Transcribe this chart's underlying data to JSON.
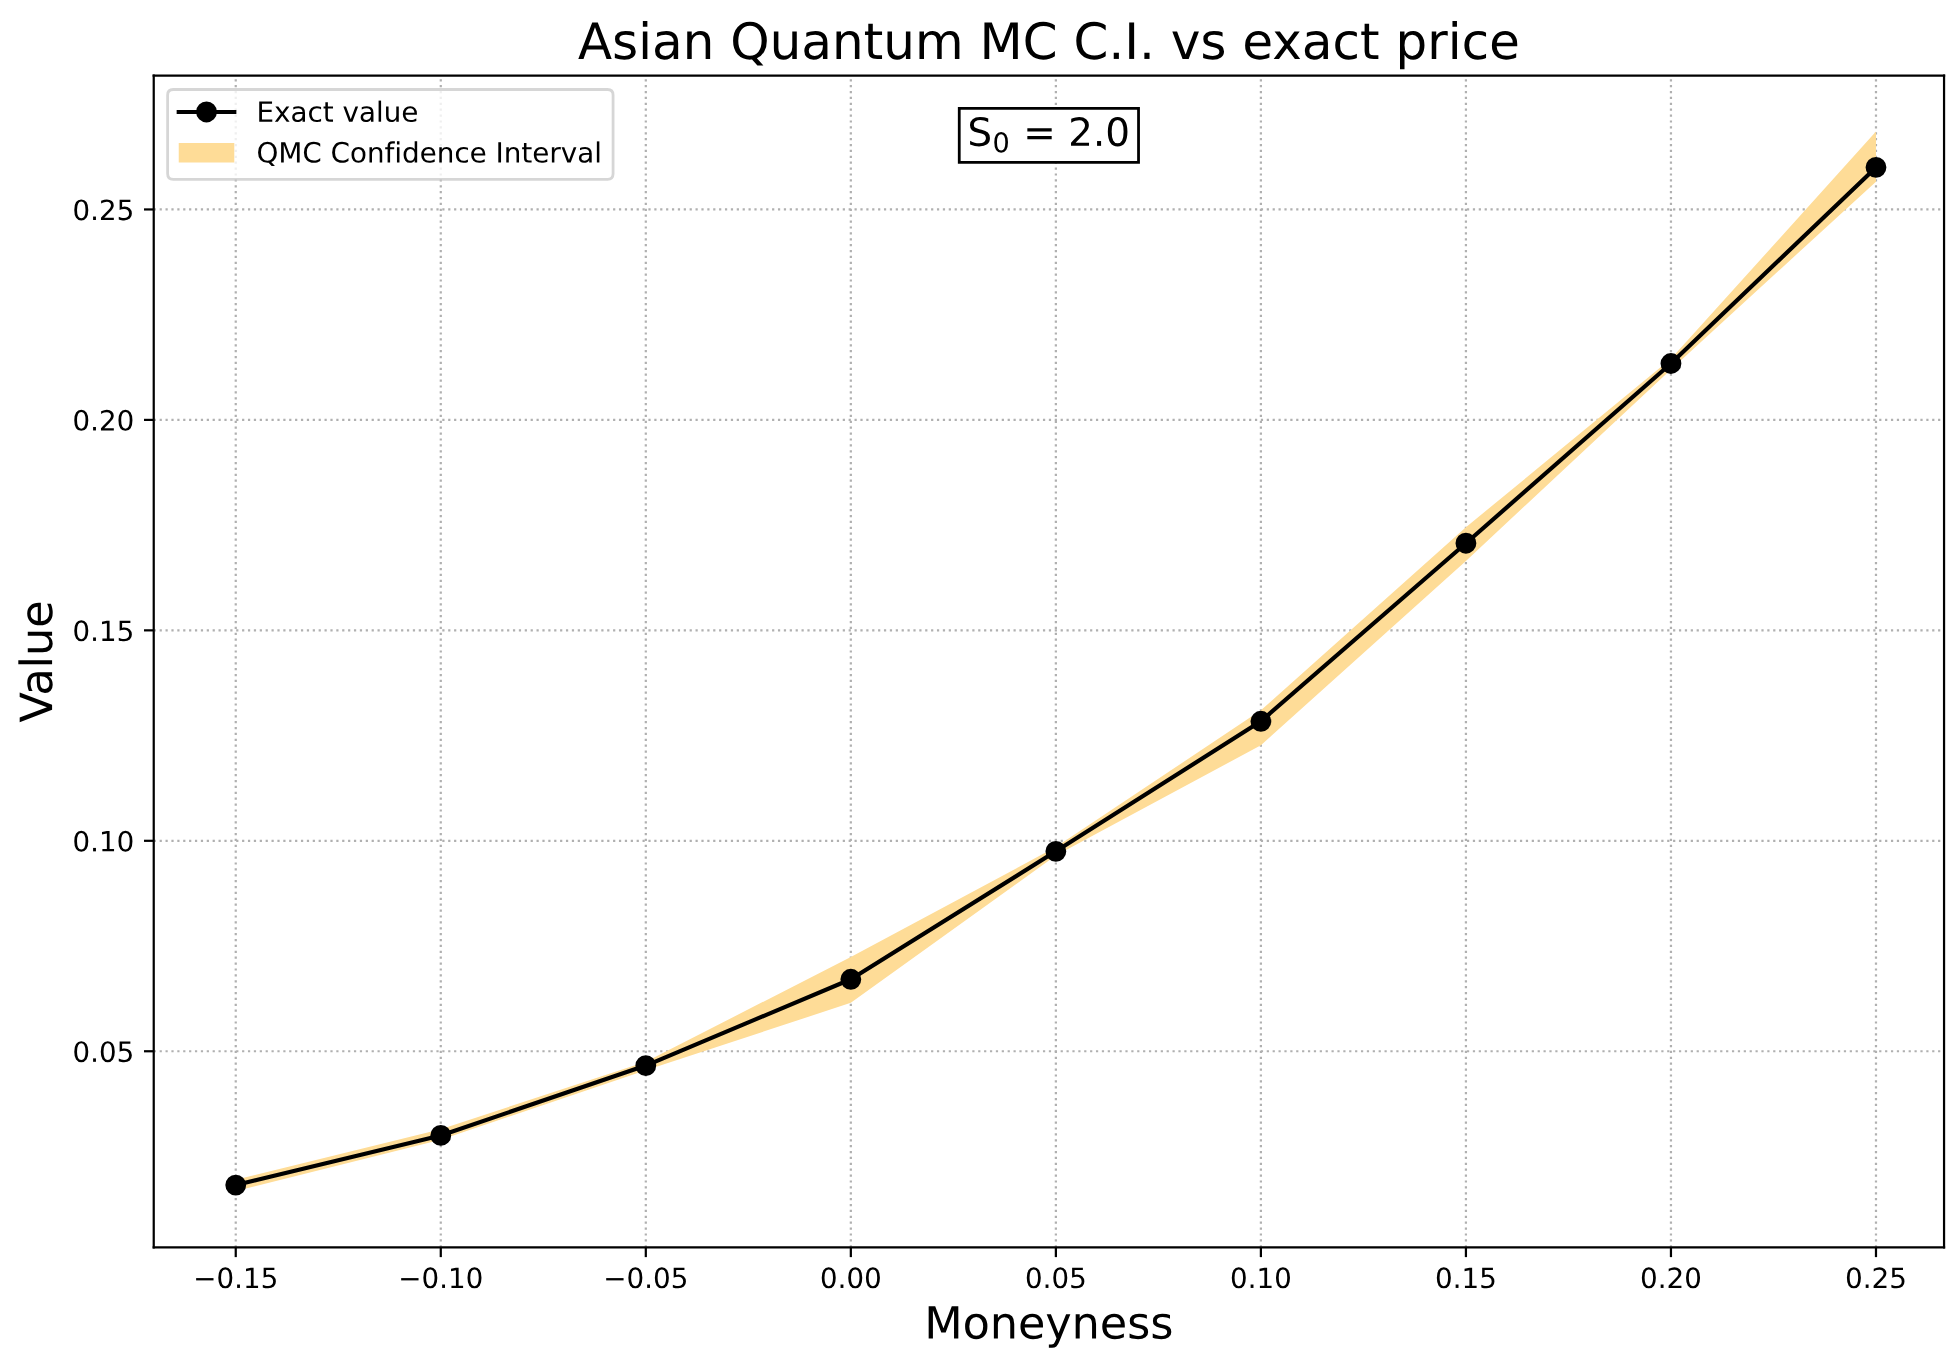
{
  "chart_data": {
    "type": "line",
    "title": "Asian Quantum MC C.I. vs exact price",
    "xlabel": "Moneyness",
    "ylabel": "Value",
    "x": [
      -0.15,
      -0.1,
      -0.05,
      0.0,
      0.05,
      0.1,
      0.15,
      0.2,
      0.25
    ],
    "series": [
      {
        "name": "Exact value",
        "color": "#000000",
        "marker": "circle",
        "values": [
          0.0182,
          0.03,
          0.0466,
          0.0671,
          0.0975,
          0.1284,
          0.1707,
          0.2134,
          0.26
        ]
      },
      {
        "name": "QMC Confidence Interval",
        "type": "area",
        "color": "#fedc97",
        "values": [
          null,
          null,
          null,
          null,
          null,
          null,
          null,
          null,
          null
        ],
        "lower": [
          0.0168,
          0.029,
          0.0455,
          0.0615,
          0.0965,
          0.1227,
          0.1665,
          0.212,
          0.2566
        ],
        "upper": [
          0.0195,
          0.0315,
          0.0475,
          0.0724,
          0.0985,
          0.131,
          0.1745,
          0.2145,
          0.2685
        ]
      }
    ],
    "annotations": [
      "S$_{0}$ = 2.0"
    ],
    "xlim": [
      -0.17,
      0.2666
    ],
    "ylim": [
      0.0034,
      0.2818
    ],
    "xticks": [
      {
        "value": -0.15,
        "label": "−0.15"
      },
      {
        "value": -0.1,
        "label": "−0.10"
      },
      {
        "value": -0.05,
        "label": "−0.05"
      },
      {
        "value": 0.0,
        "label": "0.00"
      },
      {
        "value": 0.05,
        "label": "0.05"
      },
      {
        "value": 0.1,
        "label": "0.10"
      },
      {
        "value": 0.15,
        "label": "0.15"
      },
      {
        "value": 0.2,
        "label": "0.20"
      },
      {
        "value": 0.25,
        "label": "0.25"
      }
    ],
    "yticks": [
      {
        "value": 0.05,
        "label": "0.05"
      },
      {
        "value": 0.1,
        "label": "0.10"
      },
      {
        "value": 0.15,
        "label": "0.15"
      },
      {
        "value": 0.2,
        "label": "0.20"
      },
      {
        "value": 0.25,
        "label": "0.25"
      }
    ],
    "grid": true,
    "line_style": "solid",
    "legend": "top left"
  }
}
